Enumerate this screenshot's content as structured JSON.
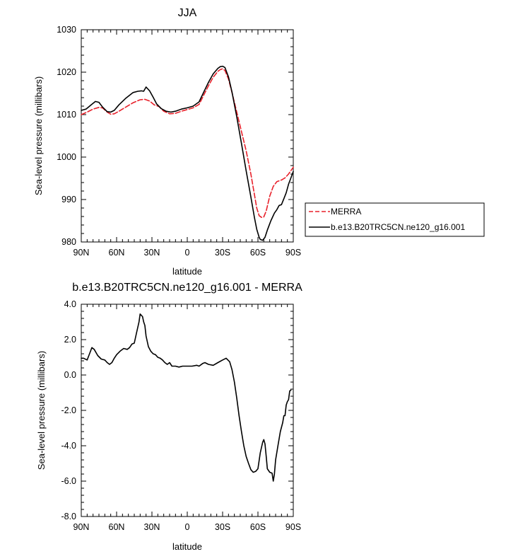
{
  "chart_data": [
    {
      "type": "line",
      "title": "JJA",
      "xlabel": "latitude",
      "ylabel": "Sea-level pressure (millibars)",
      "xlim": [
        -90,
        90
      ],
      "ylim": [
        980,
        1030
      ],
      "x_ticks": [
        -90,
        -60,
        -30,
        0,
        30,
        60,
        90
      ],
      "x_tick_labels": [
        "90N",
        "60N",
        "30N",
        "0",
        "30S",
        "60S",
        "90S"
      ],
      "y_ticks": [
        980,
        990,
        1000,
        1010,
        1020,
        1030
      ],
      "y_tick_labels": [
        "980",
        "990",
        "1000",
        "1010",
        "1020",
        "1030"
      ],
      "legend_position": "outside-right",
      "series": [
        {
          "name": "MERRA",
          "color": "#e8202a",
          "dash": "dashed",
          "points": [
            [
              -90,
              1010.0
            ],
            [
              -85,
              1010.6
            ],
            [
              -80,
              1011.3
            ],
            [
              -75,
              1011.7
            ],
            [
              -72,
              1011.6
            ],
            [
              -68,
              1010.6
            ],
            [
              -65,
              1010.1
            ],
            [
              -62,
              1010.2
            ],
            [
              -58,
              1010.8
            ],
            [
              -52,
              1011.8
            ],
            [
              -46,
              1012.8
            ],
            [
              -40,
              1013.5
            ],
            [
              -36,
              1013.6
            ],
            [
              -32,
              1013.2
            ],
            [
              -28,
              1012.3
            ],
            [
              -24,
              1011.9
            ],
            [
              -20,
              1010.8
            ],
            [
              -15,
              1010.2
            ],
            [
              -10,
              1010.3
            ],
            [
              -5,
              1010.8
            ],
            [
              0,
              1011.2
            ],
            [
              5,
              1011.6
            ],
            [
              10,
              1012.4
            ],
            [
              14,
              1014.6
            ],
            [
              18,
              1016.8
            ],
            [
              22,
              1018.8
            ],
            [
              26,
              1020.2
            ],
            [
              28,
              1020.6
            ],
            [
              30,
              1020.8
            ],
            [
              32,
              1020.4
            ],
            [
              35,
              1018.4
            ],
            [
              38,
              1015.2
            ],
            [
              42,
              1010.6
            ],
            [
              46,
              1006.0
            ],
            [
              50,
              1001.5
            ],
            [
              54,
              996.0
            ],
            [
              57,
              991.2
            ],
            [
              59,
              988.0
            ],
            [
              61,
              986.2
            ],
            [
              63,
              985.8
            ],
            [
              65,
              985.9
            ],
            [
              67,
              987.3
            ],
            [
              70,
              990.8
            ],
            [
              73,
              993.1
            ],
            [
              76,
              994.2
            ],
            [
              80,
              994.6
            ],
            [
              83,
              995.1
            ],
            [
              86,
              996.0
            ],
            [
              89,
              997.2
            ],
            [
              90,
              997.6
            ]
          ]
        },
        {
          "name": "b.e13.B20TRC5CN.ne120_g16.001",
          "color": "#000000",
          "dash": "solid",
          "points": [
            [
              -90,
              1011.0
            ],
            [
              -86,
              1011.3
            ],
            [
              -82,
              1012.2
            ],
            [
              -78,
              1013.1
            ],
            [
              -75,
              1012.9
            ],
            [
              -72,
              1011.8
            ],
            [
              -68,
              1010.7
            ],
            [
              -65,
              1010.6
            ],
            [
              -62,
              1011.0
            ],
            [
              -58,
              1012.3
            ],
            [
              -52,
              1013.9
            ],
            [
              -46,
              1015.2
            ],
            [
              -42,
              1015.5
            ],
            [
              -39,
              1015.6
            ],
            [
              -37,
              1015.5
            ],
            [
              -35,
              1016.5
            ],
            [
              -32,
              1015.6
            ],
            [
              -29,
              1014.1
            ],
            [
              -26,
              1012.5
            ],
            [
              -22,
              1011.4
            ],
            [
              -18,
              1010.8
            ],
            [
              -14,
              1010.6
            ],
            [
              -10,
              1010.8
            ],
            [
              -5,
              1011.3
            ],
            [
              0,
              1011.6
            ],
            [
              5,
              1012.0
            ],
            [
              10,
              1013.0
            ],
            [
              14,
              1015.3
            ],
            [
              18,
              1017.6
            ],
            [
              22,
              1019.6
            ],
            [
              26,
              1020.9
            ],
            [
              28,
              1021.3
            ],
            [
              30,
              1021.4
            ],
            [
              32,
              1021.1
            ],
            [
              35,
              1018.9
            ],
            [
              38,
              1015.3
            ],
            [
              42,
              1009.5
            ],
            [
              46,
              1003.2
            ],
            [
              50,
              996.8
            ],
            [
              54,
              990.6
            ],
            [
              57,
              985.8
            ],
            [
              59,
              983.0
            ],
            [
              61,
              981.1
            ],
            [
              62,
              980.6
            ],
            [
              64,
              980.4
            ],
            [
              66,
              981.1
            ],
            [
              68,
              982.8
            ],
            [
              71,
              985.0
            ],
            [
              74,
              986.8
            ],
            [
              76,
              987.6
            ],
            [
              78,
              988.6
            ],
            [
              80,
              988.8
            ],
            [
              82,
              990.2
            ],
            [
              84,
              991.6
            ],
            [
              86,
              993.6
            ],
            [
              88,
              995.1
            ],
            [
              90,
              996.6
            ]
          ]
        }
      ]
    },
    {
      "type": "line",
      "title": "b.e13.B20TRC5CN.ne120_g16.001 - MERRA",
      "xlabel": "latitude",
      "ylabel": "Sea-level pressure (millibars)",
      "xlim": [
        -90,
        90
      ],
      "ylim": [
        -8,
        4
      ],
      "x_ticks": [
        -90,
        -60,
        -30,
        0,
        30,
        60,
        90
      ],
      "x_tick_labels": [
        "90N",
        "60N",
        "30N",
        "0",
        "30S",
        "60S",
        "90S"
      ],
      "y_ticks": [
        -8,
        -6,
        -4,
        -2,
        0,
        2,
        4
      ],
      "y_tick_labels": [
        "-8.0",
        "-6.0",
        "-4.0",
        "-2.0",
        "0.0",
        "2.0",
        "4.0"
      ],
      "series": [
        {
          "color": "#000000",
          "dash": "solid",
          "points": [
            [
              -90,
              0.95
            ],
            [
              -88,
              0.95
            ],
            [
              -85,
              0.85
            ],
            [
              -83,
              1.2
            ],
            [
              -81,
              1.55
            ],
            [
              -79,
              1.45
            ],
            [
              -76,
              1.1
            ],
            [
              -73,
              0.9
            ],
            [
              -70,
              0.85
            ],
            [
              -68,
              0.7
            ],
            [
              -66,
              0.6
            ],
            [
              -64,
              0.7
            ],
            [
              -62,
              0.95
            ],
            [
              -60,
              1.15
            ],
            [
              -57,
              1.35
            ],
            [
              -54,
              1.5
            ],
            [
              -51,
              1.45
            ],
            [
              -49,
              1.55
            ],
            [
              -47,
              1.75
            ],
            [
              -45,
              1.8
            ],
            [
              -43,
              2.4
            ],
            [
              -41,
              3.0
            ],
            [
              -40,
              3.45
            ],
            [
              -38,
              3.3
            ],
            [
              -37,
              3.0
            ],
            [
              -36,
              2.8
            ],
            [
              -35,
              2.2
            ],
            [
              -33,
              1.6
            ],
            [
              -31,
              1.35
            ],
            [
              -29,
              1.2
            ],
            [
              -27,
              1.15
            ],
            [
              -25,
              1.0
            ],
            [
              -23,
              0.95
            ],
            [
              -21,
              0.85
            ],
            [
              -19,
              0.7
            ],
            [
              -17,
              0.6
            ],
            [
              -15,
              0.7
            ],
            [
              -13,
              0.5
            ],
            [
              -10,
              0.5
            ],
            [
              -7,
              0.45
            ],
            [
              -4,
              0.5
            ],
            [
              0,
              0.5
            ],
            [
              4,
              0.5
            ],
            [
              8,
              0.55
            ],
            [
              10,
              0.5
            ],
            [
              13,
              0.65
            ],
            [
              15,
              0.7
            ],
            [
              18,
              0.6
            ],
            [
              22,
              0.55
            ],
            [
              26,
              0.7
            ],
            [
              30,
              0.85
            ],
            [
              33,
              0.95
            ],
            [
              36,
              0.75
            ],
            [
              38,
              0.3
            ],
            [
              40,
              -0.4
            ],
            [
              42,
              -1.3
            ],
            [
              44,
              -2.3
            ],
            [
              46,
              -3.2
            ],
            [
              48,
              -4.0
            ],
            [
              50,
              -4.6
            ],
            [
              52,
              -5.0
            ],
            [
              54,
              -5.35
            ],
            [
              56,
              -5.5
            ],
            [
              58,
              -5.45
            ],
            [
              60,
              -5.3
            ],
            [
              62,
              -4.4
            ],
            [
              64,
              -3.8
            ],
            [
              65,
              -3.65
            ],
            [
              66,
              -3.9
            ],
            [
              67,
              -4.6
            ],
            [
              68,
              -5.3
            ],
            [
              70,
              -5.5
            ],
            [
              72,
              -5.55
            ],
            [
              73,
              -6.0
            ],
            [
              74,
              -5.6
            ],
            [
              75,
              -4.8
            ],
            [
              77,
              -4.0
            ],
            [
              79,
              -3.2
            ],
            [
              81,
              -2.7
            ],
            [
              82,
              -2.3
            ],
            [
              83,
              -2.3
            ],
            [
              84,
              -1.7
            ],
            [
              85,
              -1.5
            ],
            [
              86,
              -1.4
            ],
            [
              87,
              -0.9
            ],
            [
              88,
              -0.85
            ]
          ]
        }
      ]
    }
  ]
}
